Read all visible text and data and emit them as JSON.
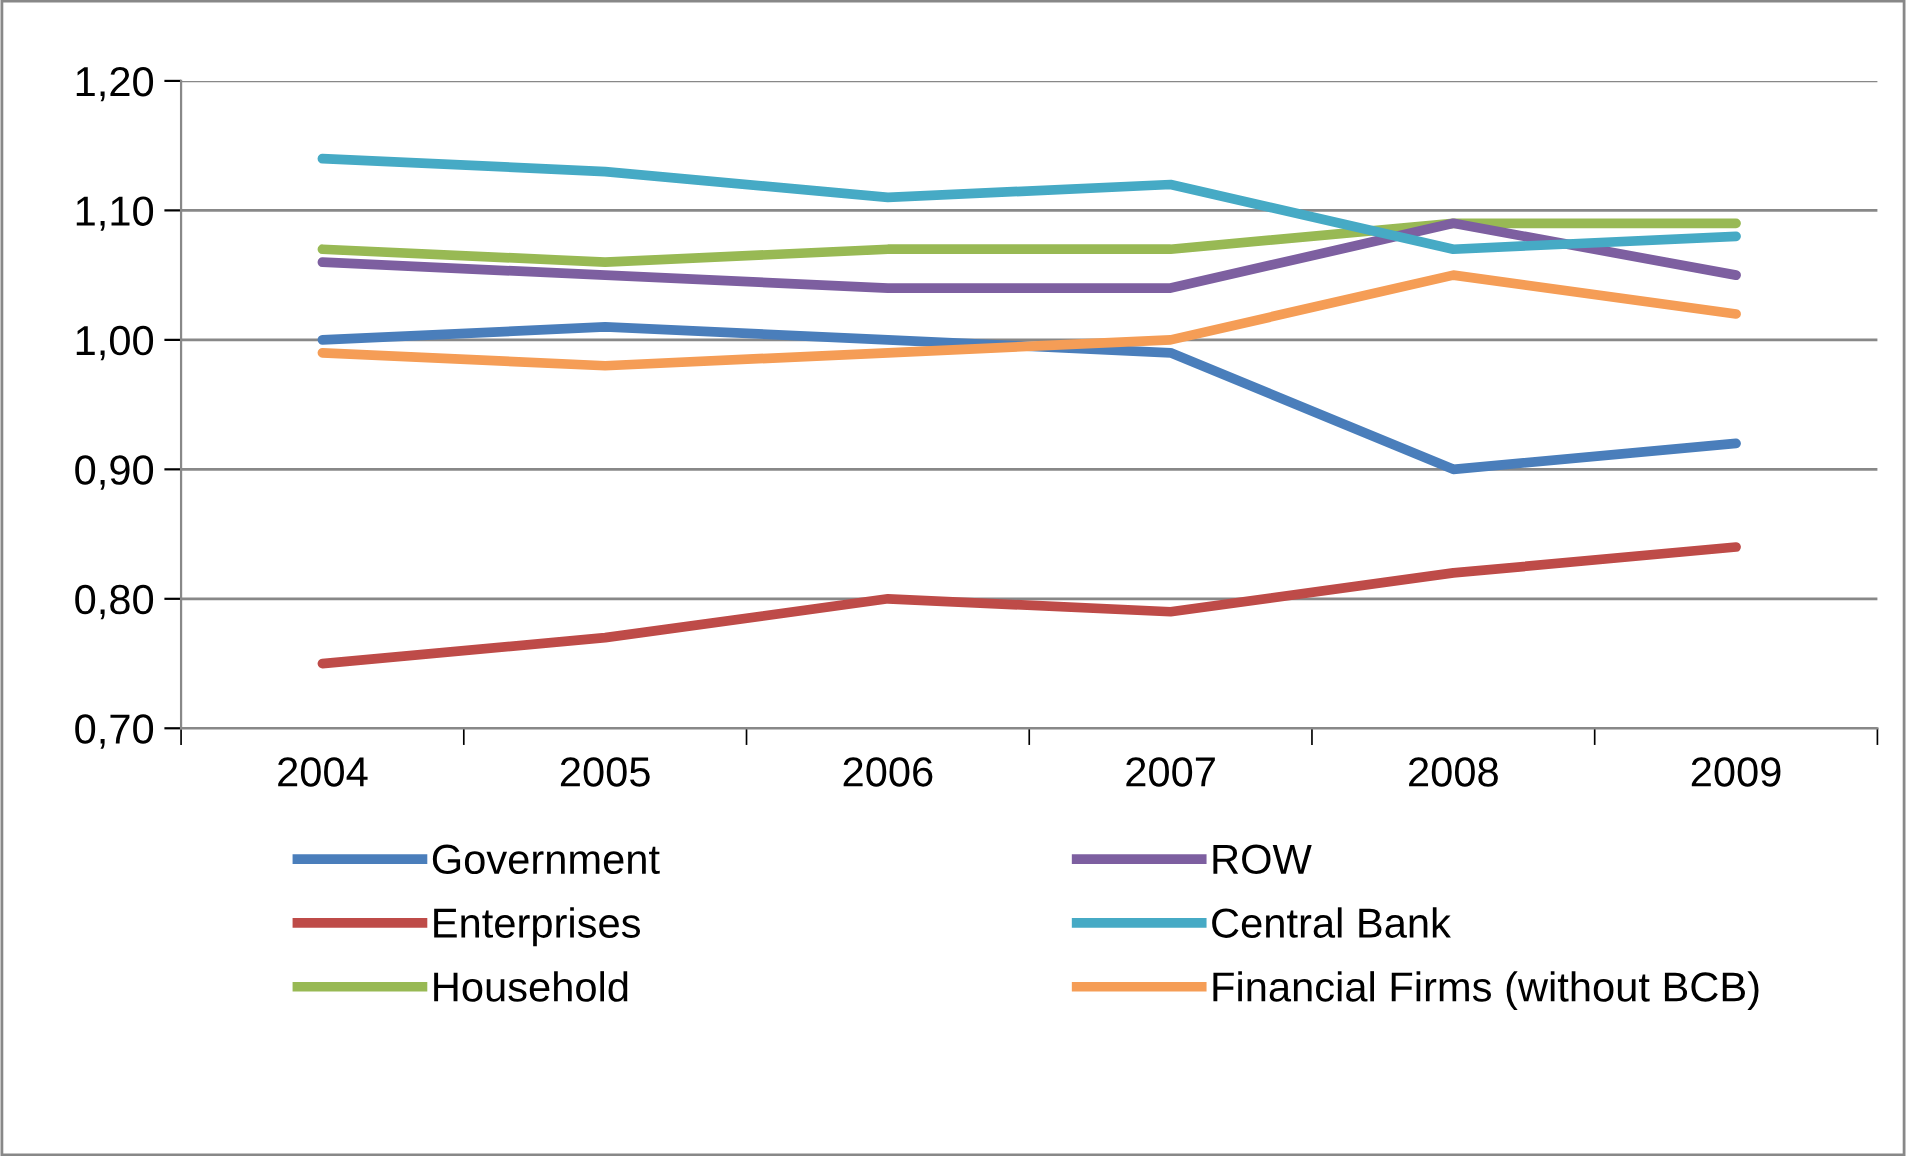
{
  "chart_data": {
    "type": "line",
    "categories": [
      "2004",
      "2005",
      "2006",
      "2007",
      "2008",
      "2009"
    ],
    "series": [
      {
        "name": "Government",
        "color": "#4a7ebb",
        "values": [
          1.0,
          1.01,
          1.0,
          0.99,
          0.9,
          0.92
        ]
      },
      {
        "name": "Enterprises",
        "color": "#be4b48",
        "values": [
          0.75,
          0.77,
          0.8,
          0.79,
          0.82,
          0.84
        ]
      },
      {
        "name": "Household",
        "color": "#98b954",
        "values": [
          1.07,
          1.06,
          1.07,
          1.07,
          1.09,
          1.09
        ]
      },
      {
        "name": "ROW",
        "color": "#7d5fa0",
        "values": [
          1.06,
          1.05,
          1.04,
          1.04,
          1.09,
          1.05
        ]
      },
      {
        "name": "Central Bank",
        "color": "#46aac5",
        "values": [
          1.14,
          1.13,
          1.11,
          1.12,
          1.07,
          1.08
        ]
      },
      {
        "name": "Financial Firms (without BCB)",
        "color": "#f59d56",
        "values": [
          0.99,
          0.98,
          0.99,
          1.0,
          1.05,
          1.02
        ]
      }
    ],
    "ylim": [
      0.7,
      1.2
    ],
    "yticks": [
      {
        "value": 0.7,
        "label": "0,70"
      },
      {
        "value": 0.8,
        "label": "0,80"
      },
      {
        "value": 0.9,
        "label": "0,90"
      },
      {
        "value": 1.0,
        "label": "1,00"
      },
      {
        "value": 1.1,
        "label": "1,10"
      },
      {
        "value": 1.2,
        "label": "1,20"
      }
    ],
    "grid": "y",
    "legend": "bottom",
    "marker": "none",
    "line_style": "solid"
  }
}
